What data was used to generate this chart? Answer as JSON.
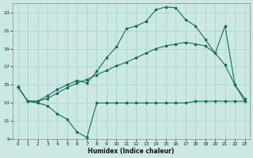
{
  "xlabel": "Humidex (Indice chaleur)",
  "bg_color": "#cce8e4",
  "grid_color": "#aad4ce",
  "line_color": "#1a6b5a",
  "xlim": [
    -0.5,
    23.5
  ],
  "ylim": [
    9,
    24
  ],
  "yticks": [
    9,
    11,
    13,
    15,
    17,
    19,
    21,
    23
  ],
  "xticks": [
    0,
    1,
    2,
    3,
    4,
    5,
    6,
    7,
    8,
    9,
    10,
    11,
    12,
    13,
    14,
    15,
    16,
    17,
    18,
    19,
    20,
    21,
    22,
    23
  ],
  "line1_x": [
    0,
    1,
    2,
    3,
    4,
    5,
    6,
    7,
    8,
    9,
    10,
    11,
    12,
    13,
    14,
    15,
    16,
    17,
    18,
    19,
    20,
    21,
    22,
    23
  ],
  "line1_y": [
    14.8,
    13.2,
    13.0,
    12.7,
    11.8,
    11.2,
    9.8,
    9.2,
    13.0,
    13.0,
    13.0,
    13.0,
    13.0,
    13.0,
    13.0,
    13.0,
    13.0,
    13.0,
    13.2,
    13.2,
    13.2,
    13.2,
    13.2,
    13.2
  ],
  "line2_x": [
    0,
    1,
    2,
    3,
    4,
    5,
    6,
    7,
    8,
    9,
    10,
    11,
    12,
    13,
    14,
    15,
    16,
    17,
    18,
    19,
    20,
    21,
    22,
    23
  ],
  "line2_y": [
    14.8,
    13.2,
    13.2,
    13.5,
    14.1,
    14.7,
    15.2,
    15.6,
    16.1,
    16.6,
    17.1,
    17.5,
    18.0,
    18.5,
    19.0,
    19.3,
    19.5,
    19.7,
    19.5,
    19.3,
    18.5,
    17.2,
    15.0,
    13.2
  ],
  "line3_x": [
    0,
    1,
    2,
    3,
    4,
    5,
    6,
    7,
    8,
    9,
    10,
    11,
    12,
    13,
    14,
    15,
    16,
    17,
    18,
    19,
    20,
    21,
    22,
    23
  ],
  "line3_y": [
    14.8,
    13.2,
    13.2,
    13.8,
    14.5,
    15.0,
    15.5,
    15.2,
    16.5,
    18.0,
    19.2,
    21.2,
    21.5,
    22.0,
    23.3,
    23.6,
    23.5,
    22.2,
    21.5,
    20.0,
    18.5,
    21.5,
    15.0,
    13.5
  ]
}
